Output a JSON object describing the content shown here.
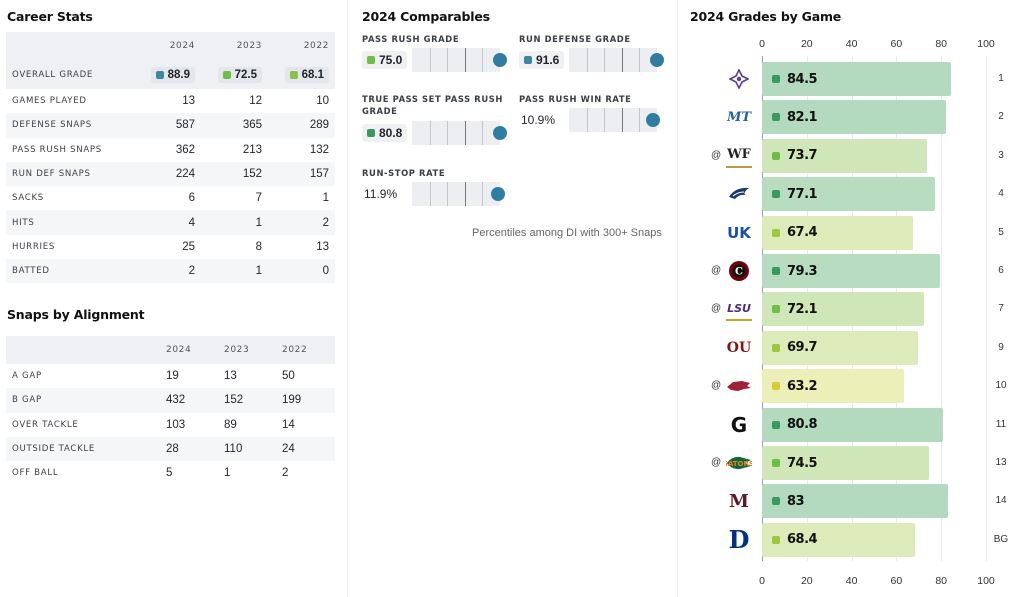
{
  "career_stats": {
    "title": "Career Stats",
    "columns": [
      "2024",
      "2023",
      "2022"
    ],
    "grade_row": {
      "label": "OVERALL GRADE",
      "values": [
        {
          "value": "88.9",
          "color": "#3d87a0"
        },
        {
          "value": "72.5",
          "color": "#6fbd44"
        },
        {
          "value": "68.1",
          "color": "#8bc34a"
        }
      ]
    },
    "rows": [
      {
        "label": "GAMES PLAYED",
        "values": [
          "13",
          "12",
          "10"
        ]
      },
      {
        "label": "DEFENSE SNAPS",
        "values": [
          "587",
          "365",
          "289"
        ]
      },
      {
        "label": "PASS RUSH SNAPS",
        "values": [
          "362",
          "213",
          "132"
        ]
      },
      {
        "label": "RUN DEF SNAPS",
        "values": [
          "224",
          "152",
          "157"
        ]
      },
      {
        "label": "SACKS",
        "values": [
          "6",
          "7",
          "1"
        ]
      },
      {
        "label": "HITS",
        "values": [
          "4",
          "1",
          "2"
        ]
      },
      {
        "label": "HURRIES",
        "values": [
          "25",
          "8",
          "13"
        ]
      },
      {
        "label": "BATTED",
        "values": [
          "2",
          "1",
          "0"
        ]
      }
    ]
  },
  "snaps_by_alignment": {
    "title": "Snaps by Alignment",
    "columns": [
      "2024",
      "2023",
      "2022"
    ],
    "rows": [
      {
        "label": "A GAP",
        "values": [
          "19",
          "13",
          "50"
        ]
      },
      {
        "label": "B GAP",
        "values": [
          "432",
          "152",
          "199"
        ]
      },
      {
        "label": "OVER TACKLE",
        "values": [
          "103",
          "89",
          "14"
        ]
      },
      {
        "label": "OUTSIDE TACKLE",
        "values": [
          "28",
          "110",
          "24"
        ]
      },
      {
        "label": "OFF BALL",
        "values": [
          "5",
          "1",
          "2"
        ]
      }
    ]
  },
  "comparables": {
    "title": "2024 Comparables",
    "items": [
      {
        "label": "PASS RUSH GRADE",
        "value": "75.0",
        "chip": true,
        "color": "#6fbd44",
        "percentile": 100
      },
      {
        "label": "RUN DEFENSE GRADE",
        "value": "91.6",
        "chip": true,
        "color": "#3d87a0",
        "percentile": 100
      },
      {
        "label": "TRUE PASS SET PASS RUSH GRADE",
        "value": "80.8",
        "chip": true,
        "color": "#3a9a5c",
        "percentile": 100
      },
      {
        "label": "PASS RUSH WIN RATE",
        "value": "10.9%",
        "chip": false,
        "color": "",
        "percentile": 96
      },
      {
        "label": "RUN-STOP RATE",
        "value": "11.9%",
        "chip": false,
        "color": "",
        "percentile": 98
      }
    ],
    "footnote": "Percentiles among DI with 300+ Snaps",
    "dot_color": "#2f7da3"
  },
  "chart_data": {
    "type": "bar",
    "orientation": "horizontal",
    "title": "2024 Grades by Game",
    "xlim": [
      0,
      100
    ],
    "xticks": [
      "0",
      "20",
      "40",
      "60",
      "80",
      "100"
    ],
    "grid": true,
    "games": [
      {
        "opponent_icon": "tcu-logo-icon",
        "away": "",
        "value": 84.5,
        "label": "84.5",
        "week": "1",
        "bar_color": "#b3d9be",
        "dot_color": "#3a9a5c"
      },
      {
        "opponent_icon": "middle-tennessee-logo-icon",
        "away": "",
        "value": 82.1,
        "label": "82.1",
        "week": "2",
        "bar_color": "#b3d9be",
        "dot_color": "#3a9a5c"
      },
      {
        "opponent_icon": "wake-forest-logo-icon",
        "away": "@",
        "value": 73.7,
        "label": "73.7",
        "week": "3",
        "bar_color": "#cfe6b8",
        "dot_color": "#6fbd44"
      },
      {
        "opponent_icon": "georgia-southern-logo-icon",
        "away": "",
        "value": 77.1,
        "label": "77.1",
        "week": "4",
        "bar_color": "#b8dcbf",
        "dot_color": "#3a9a5c"
      },
      {
        "opponent_icon": "kentucky-logo-icon",
        "away": "",
        "value": 67.4,
        "label": "67.4",
        "week": "5",
        "bar_color": "#dcebb9",
        "dot_color": "#9cc83c"
      },
      {
        "opponent_icon": "south-carolina-logo-icon",
        "away": "@",
        "value": 79.3,
        "label": "79.3",
        "week": "6",
        "bar_color": "#b8dcbf",
        "dot_color": "#3a9a5c"
      },
      {
        "opponent_icon": "lsu-logo-icon",
        "away": "@",
        "value": 72.1,
        "label": "72.1",
        "week": "7",
        "bar_color": "#cfe6b8",
        "dot_color": "#6fbd44"
      },
      {
        "opponent_icon": "oklahoma-logo-icon",
        "away": "",
        "value": 69.7,
        "label": "69.7",
        "week": "9",
        "bar_color": "#dcebb9",
        "dot_color": "#9cc83c"
      },
      {
        "opponent_icon": "arkansas-logo-icon",
        "away": "@",
        "value": 63.2,
        "label": "63.2",
        "week": "10",
        "bar_color": "#ecefb8",
        "dot_color": "#d5cc3a"
      },
      {
        "opponent_icon": "georgia-logo-icon",
        "away": "",
        "value": 80.8,
        "label": "80.8",
        "week": "11",
        "bar_color": "#b3d9be",
        "dot_color": "#3a9a5c"
      },
      {
        "opponent_icon": "florida-logo-icon",
        "away": "@",
        "value": 74.5,
        "label": "74.5",
        "week": "13",
        "bar_color": "#cfe6b8",
        "dot_color": "#6fbd44"
      },
      {
        "opponent_icon": "mississippi-state-logo-icon",
        "away": "",
        "value": 83,
        "label": "83",
        "week": "14",
        "bar_color": "#b3d9be",
        "dot_color": "#3a9a5c"
      },
      {
        "opponent_icon": "duke-logo-icon",
        "away": "",
        "value": 68.4,
        "label": "68.4",
        "week": "BG",
        "bar_color": "#dcebb9",
        "dot_color": "#9cc83c"
      }
    ]
  }
}
